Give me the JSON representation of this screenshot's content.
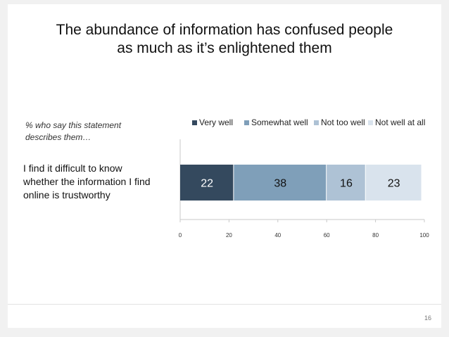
{
  "slide": {
    "title_line1": "The abundance of information has confused people",
    "title_line2": "as much as it’s enlightened them",
    "note_line1": "% who say this statement",
    "note_line2": "describes them…",
    "row_label_line1": "I find it difficult to know",
    "row_label_line2": "whether the information I find",
    "row_label_line3": "online is trustworthy",
    "page_number": "16"
  },
  "chart_data": {
    "type": "bar",
    "orientation": "horizontal",
    "stacked": true,
    "categories": [
      "I find it difficult to know whether the information I find online is trustworthy"
    ],
    "series": [
      {
        "name": "Very well",
        "values": [
          22
        ],
        "color": "#34495e",
        "label_color": "#ffffff"
      },
      {
        "name": "Somewhat well",
        "values": [
          38
        ],
        "color": "#7f9fb9",
        "label_color": "#111111"
      },
      {
        "name": "Not too well",
        "values": [
          16
        ],
        "color": "#aec2d5",
        "label_color": "#111111"
      },
      {
        "name": "Not well at all",
        "values": [
          23
        ],
        "color": "#d9e3ed",
        "label_color": "#111111"
      }
    ],
    "xlim": [
      0,
      100
    ],
    "xticks": [
      0,
      20,
      40,
      60,
      80,
      100
    ],
    "grid": false,
    "legend_position": "top"
  }
}
